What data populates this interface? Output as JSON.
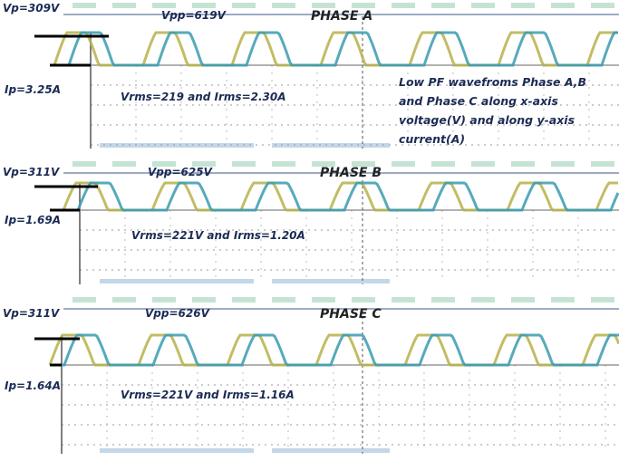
{
  "note": "Low PF wavefroms Phase A,B and Phase C along x-axis voltage(V) and along y-axis current(A)",
  "panels": [
    {
      "vp": "Vp=309V",
      "vpp": "Vpp=619V",
      "title": "PHASE A",
      "ip": "Ip=3.25A",
      "rms": "Vrms=219 and Irms=2.30A"
    },
    {
      "vp": "Vp=311V",
      "vpp": "Vpp=625V",
      "title": "PHASE B",
      "ip": "Ip=1.69A",
      "rms": "Vrms=221V and Irms=1.20A"
    },
    {
      "vp": "Vp=311V",
      "vpp": "Vpp=626V",
      "title": "PHASE C",
      "ip": "Ip=1.64A",
      "rms": "Vrms=221V and Irms=1.16A"
    }
  ]
}
